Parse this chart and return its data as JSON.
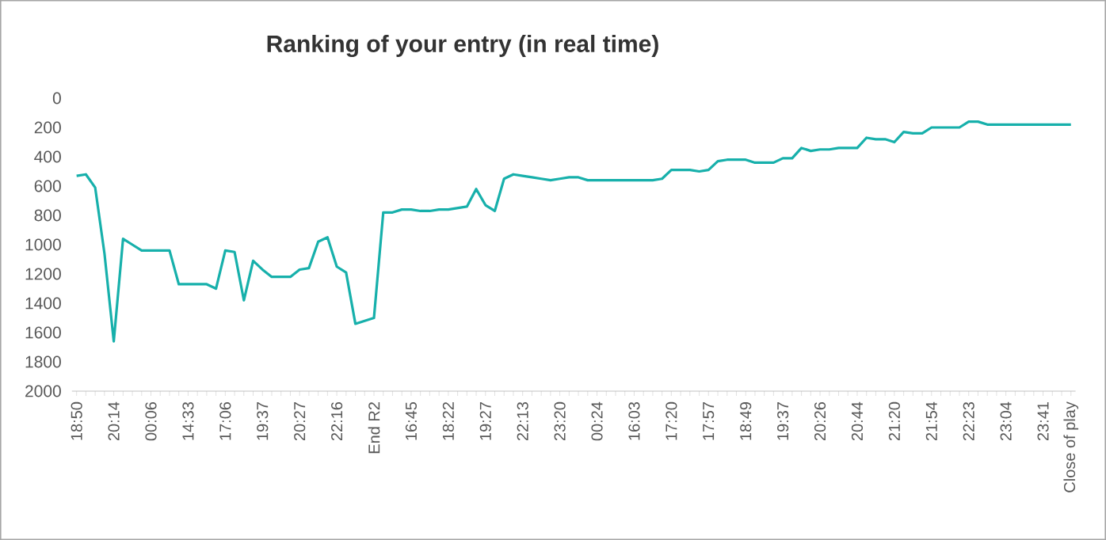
{
  "chart_data": {
    "type": "line",
    "title": "Ranking of your entry (in real time)",
    "categories": [
      "18:50",
      null,
      null,
      null,
      "20:14",
      null,
      null,
      null,
      "00:06",
      null,
      null,
      null,
      "14:33",
      null,
      null,
      null,
      "17:06",
      null,
      null,
      null,
      "19:37",
      null,
      null,
      null,
      "20:27",
      null,
      null,
      null,
      "22:16",
      null,
      null,
      null,
      "End R2",
      null,
      null,
      null,
      "16:45",
      null,
      null,
      null,
      "18:22",
      null,
      null,
      null,
      "19:27",
      null,
      null,
      null,
      "22:13",
      null,
      null,
      null,
      "23:20",
      null,
      null,
      null,
      "00:24",
      null,
      null,
      null,
      "16:03",
      null,
      null,
      null,
      "17:20",
      null,
      null,
      null,
      "17:57",
      null,
      null,
      null,
      "18:49",
      null,
      null,
      null,
      "19:37",
      null,
      null,
      null,
      "20:26",
      null,
      null,
      null,
      "20:44",
      null,
      null,
      null,
      "21:20",
      null,
      null,
      null,
      "21:54",
      null,
      null,
      null,
      "22:23",
      null,
      null,
      null,
      "23:04",
      null,
      null,
      null,
      "23:41",
      null,
      null,
      "Close of play"
    ],
    "values": [
      530,
      520,
      610,
      1060,
      1660,
      960,
      1000,
      1040,
      1040,
      1040,
      1040,
      1270,
      1270,
      1270,
      1270,
      1300,
      1040,
      1050,
      1380,
      1110,
      1170,
      1220,
      1220,
      1220,
      1170,
      1160,
      980,
      950,
      1150,
      1190,
      1540,
      1520,
      1500,
      780,
      780,
      760,
      760,
      770,
      770,
      760,
      760,
      750,
      740,
      620,
      730,
      770,
      550,
      520,
      530,
      540,
      550,
      560,
      550,
      540,
      540,
      560,
      560,
      560,
      560,
      560,
      560,
      560,
      560,
      550,
      490,
      490,
      490,
      500,
      490,
      430,
      420,
      420,
      420,
      440,
      440,
      440,
      410,
      410,
      340,
      360,
      350,
      350,
      340,
      340,
      340,
      270,
      280,
      280,
      300,
      230,
      240,
      240,
      200,
      200,
      200,
      200,
      160,
      160,
      180,
      180,
      180,
      180,
      180,
      180,
      180,
      180,
      180,
      180
    ],
    "color": "#17b0ab",
    "ylim": [
      2000,
      0
    ],
    "yticks": [
      0,
      200,
      400,
      600,
      800,
      1000,
      1200,
      1400,
      1600,
      1800,
      2000
    ],
    "marker": "none",
    "line_style": "solid"
  }
}
